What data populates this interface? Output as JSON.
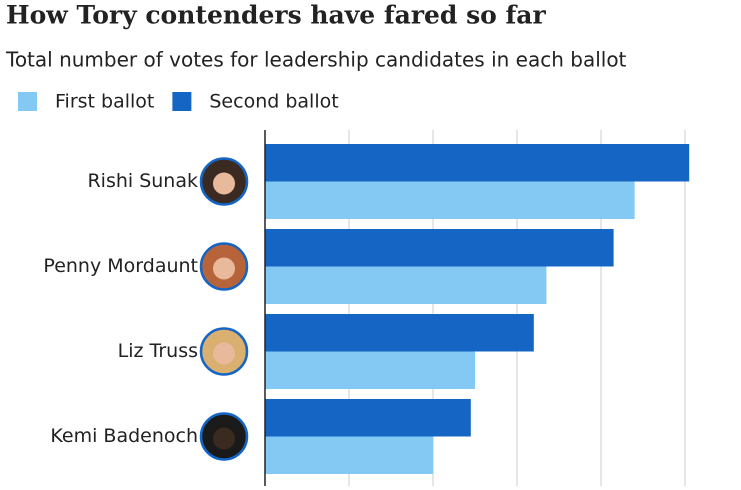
{
  "chart_data": {
    "type": "hbar",
    "title": "How Tory contenders have fared so far",
    "subtitle": "Total number of votes for leadership candidates in each ballot",
    "categories": [
      "Rishi Sunak",
      "Penny Mordaunt",
      "Liz Truss",
      "Kemi Badenoch"
    ],
    "series": [
      {
        "name": "First ballot",
        "color": "#83c9f4",
        "values": [
          88,
          67,
          50,
          40
        ]
      },
      {
        "name": "Second ballot",
        "color": "#1465c4",
        "values": [
          101,
          83,
          64,
          49
        ]
      }
    ],
    "xlim": [
      0,
      113
    ],
    "xticks": [
      0,
      20,
      40,
      60,
      80,
      100
    ],
    "grid": true
  }
}
